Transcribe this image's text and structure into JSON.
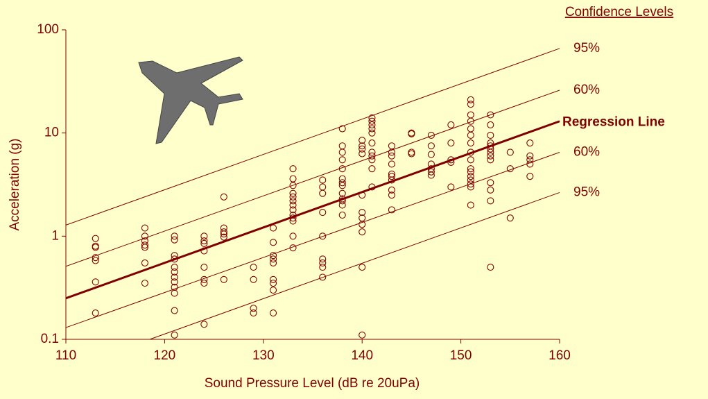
{
  "chart_data": {
    "type": "scatter",
    "xlabel": "Sound Pressure Level  (dB re 20uPa)",
    "ylabel": "Acceleration  (g)",
    "legend_title": "Confidence Levels",
    "xlim": [
      110,
      160
    ],
    "xticks": [
      110,
      120,
      130,
      140,
      150,
      160
    ],
    "ylim": [
      0.1,
      100
    ],
    "yticks": [
      0.1,
      1,
      10,
      100
    ],
    "ylog": true,
    "series": [
      {
        "type": "scatter",
        "color": "#800000",
        "x": [
          113,
          113,
          113,
          113,
          113,
          113,
          113,
          118,
          118,
          118,
          118,
          118,
          118,
          118,
          121,
          121,
          121,
          121,
          121,
          121,
          121,
          121,
          121,
          121,
          121,
          121,
          124,
          124,
          124,
          124,
          124,
          124,
          124,
          124,
          126,
          126,
          126,
          126,
          126,
          126,
          129,
          129,
          129,
          129,
          131,
          131,
          131,
          131,
          131,
          131,
          131,
          131,
          131,
          133,
          133,
          133,
          133,
          133,
          133,
          133,
          133,
          133,
          133,
          133,
          133,
          133,
          136,
          136,
          136,
          136,
          136,
          136,
          136,
          136,
          136,
          138,
          138,
          138,
          138,
          138,
          138,
          138,
          138,
          138,
          138,
          138,
          138,
          138,
          140,
          140,
          140,
          140,
          140,
          140,
          140,
          140,
          140,
          140,
          140,
          141,
          141,
          141,
          141,
          141,
          141,
          141,
          141,
          141,
          141,
          141,
          143,
          143,
          143,
          143,
          143,
          143,
          143,
          143,
          143,
          143,
          145,
          145,
          145,
          145,
          147,
          147,
          147,
          147,
          147,
          147,
          147,
          149,
          149,
          149,
          149,
          149,
          151,
          151,
          151,
          151,
          151,
          151,
          151,
          151,
          151,
          151,
          151,
          151,
          151,
          151,
          151,
          151,
          153,
          153,
          153,
          153,
          153,
          153,
          153,
          153,
          153,
          153,
          153,
          153,
          153,
          155,
          155,
          155,
          157,
          157,
          157,
          157,
          157
        ],
        "values": [
          0.95,
          0.8,
          0.78,
          0.62,
          0.58,
          0.36,
          0.18,
          1.2,
          1.0,
          0.9,
          0.82,
          0.78,
          0.55,
          0.35,
          1.0,
          0.92,
          0.65,
          0.6,
          0.5,
          0.45,
          0.4,
          0.36,
          0.32,
          0.28,
          0.19,
          0.11,
          1.0,
          0.9,
          0.85,
          0.72,
          0.5,
          0.38,
          0.35,
          0.14,
          2.4,
          1.2,
          1.1,
          1.05,
          0.98,
          0.38,
          0.5,
          0.38,
          0.2,
          0.18,
          1.2,
          0.87,
          0.65,
          0.6,
          0.55,
          0.38,
          0.35,
          0.3,
          0.18,
          4.5,
          3.6,
          3.1,
          2.6,
          2.4,
          2.2,
          2.0,
          1.8,
          1.6,
          1.5,
          1.4,
          1.0,
          0.77,
          3.5,
          3.0,
          2.6,
          1.7,
          1.0,
          0.6,
          0.55,
          0.5,
          0.4,
          11,
          7.5,
          6.5,
          5.5,
          4.5,
          3.6,
          3.3,
          3.1,
          2.6,
          2.3,
          2.2,
          2.0,
          1.6,
          8.5,
          7.5,
          7.0,
          6.3,
          2.5,
          1.7,
          1.5,
          1.3,
          1.1,
          0.5,
          0.11,
          14,
          13,
          12,
          11,
          10,
          8,
          6.5,
          6.0,
          5.5,
          4.5,
          3.0,
          7.5,
          6.5,
          6.0,
          5.0,
          4.0,
          3.8,
          3.5,
          2.8,
          2.5,
          1.8,
          10,
          9.8,
          6.5,
          6.3,
          9.5,
          7.5,
          6.2,
          5.0,
          4.5,
          4.2,
          3.9,
          12,
          8,
          5.5,
          5.2,
          3.0,
          21,
          19,
          15,
          13,
          11,
          9.5,
          8,
          6.5,
          5.5,
          4.5,
          4.2,
          3.8,
          3.5,
          3.2,
          3.0,
          2.0,
          15,
          12,
          9.5,
          8,
          7.5,
          7,
          6.5,
          6.0,
          5.5,
          3.3,
          2.8,
          2.2,
          0.5,
          6.5,
          4.5,
          1.5,
          8,
          6,
          5.5,
          5.0,
          3.8
        ]
      },
      {
        "type": "line",
        "name": "95%",
        "color": "#800000",
        "x": [
          110,
          160
        ],
        "values": [
          1.28,
          66
        ]
      },
      {
        "type": "line",
        "name": "60%",
        "color": "#800000",
        "x": [
          110,
          160
        ],
        "values": [
          0.51,
          26
        ]
      },
      {
        "type": "line",
        "name": "Regression Line",
        "color": "#800000",
        "bold": true,
        "x": [
          110,
          160
        ],
        "values": [
          0.25,
          13
        ]
      },
      {
        "type": "line",
        "name": "60%",
        "color": "#800000",
        "x": [
          110,
          160
        ],
        "values": [
          0.13,
          6.5
        ]
      },
      {
        "type": "line",
        "name": "95%",
        "color": "#800000",
        "x": [
          118.5,
          160
        ],
        "values": [
          0.1,
          2.65
        ]
      }
    ]
  }
}
